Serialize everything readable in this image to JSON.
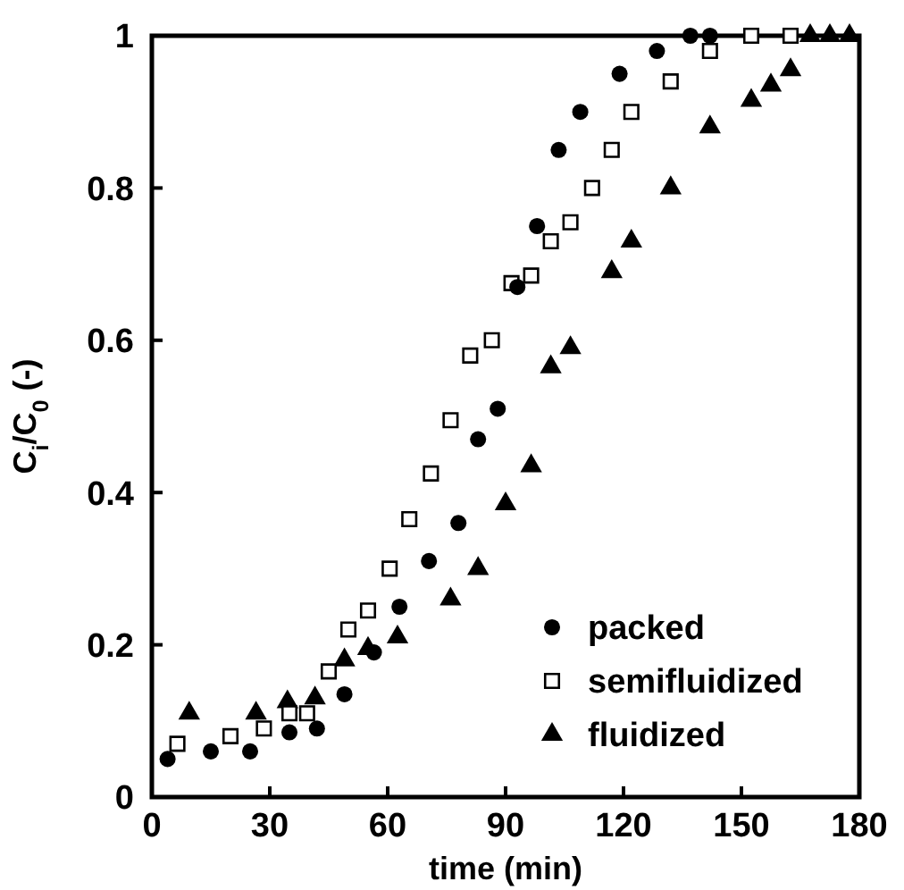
{
  "chart_data": {
    "type": "scatter",
    "xlabel": "time (min)",
    "ylabel": "C$_{i}$/C$_{0}$ (-)",
    "xlim": [
      0,
      180
    ],
    "xticks": [
      0,
      30,
      60,
      90,
      120,
      150,
      180
    ],
    "ylim": [
      0,
      1
    ],
    "yticks": [
      0,
      {
        "value": 0.2,
        "label": "0.2"
      },
      {
        "value": 0.4,
        "label": "0.4"
      },
      {
        "value": 0.6,
        "label": "0.6"
      },
      {
        "value": 0.8,
        "label": "0.8"
      },
      1
    ],
    "grid": false,
    "legend": "bottom right",
    "series": [
      {
        "name": "packed",
        "color": "#000000",
        "marker": "circle",
        "x": [
          4,
          15,
          25,
          35,
          42,
          49,
          56.5,
          63,
          70.5,
          78,
          83,
          88,
          93,
          98,
          103.5,
          109,
          119,
          128.5,
          137,
          142
        ],
        "values": [
          0.05,
          0.06,
          0.06,
          0.085,
          0.09,
          0.135,
          0.19,
          0.25,
          0.31,
          0.36,
          0.47,
          0.51,
          0.67,
          0.75,
          0.85,
          0.9,
          0.95,
          0.98,
          1,
          1
        ]
      },
      {
        "name": "semifluidized",
        "color": "#000000",
        "marker": "square",
        "x": [
          6.5,
          20,
          28.5,
          35,
          39.5,
          45,
          50,
          55,
          60.5,
          65.5,
          71,
          76,
          81,
          86.5,
          91.5,
          96.5,
          101.5,
          106.5,
          112,
          117,
          122,
          132,
          142,
          152.5,
          162.5
        ],
        "values": [
          0.07,
          0.08,
          0.09,
          0.11,
          0.11,
          0.165,
          0.22,
          0.245,
          0.3,
          0.365,
          0.425,
          0.495,
          0.58,
          0.6,
          0.675,
          0.685,
          0.73,
          0.755,
          0.8,
          0.85,
          0.9,
          0.94,
          0.98,
          1,
          1
        ]
      },
      {
        "name": "fluidized",
        "color": "#000000",
        "marker": "triangle",
        "x": [
          9.5,
          26.5,
          34.5,
          41.5,
          49,
          55,
          62.5,
          76,
          83,
          90,
          96.5,
          101.5,
          106.5,
          117,
          122,
          132,
          142,
          152.5,
          157.5,
          162.5,
          167.5,
          172.5,
          177.5
        ],
        "values": [
          0.11,
          0.11,
          0.125,
          0.13,
          0.18,
          0.195,
          0.21,
          0.26,
          0.3,
          0.385,
          0.435,
          0.565,
          0.59,
          0.69,
          0.73,
          0.8,
          0.88,
          0.915,
          0.935,
          0.955,
          1,
          1,
          1
        ]
      }
    ]
  }
}
